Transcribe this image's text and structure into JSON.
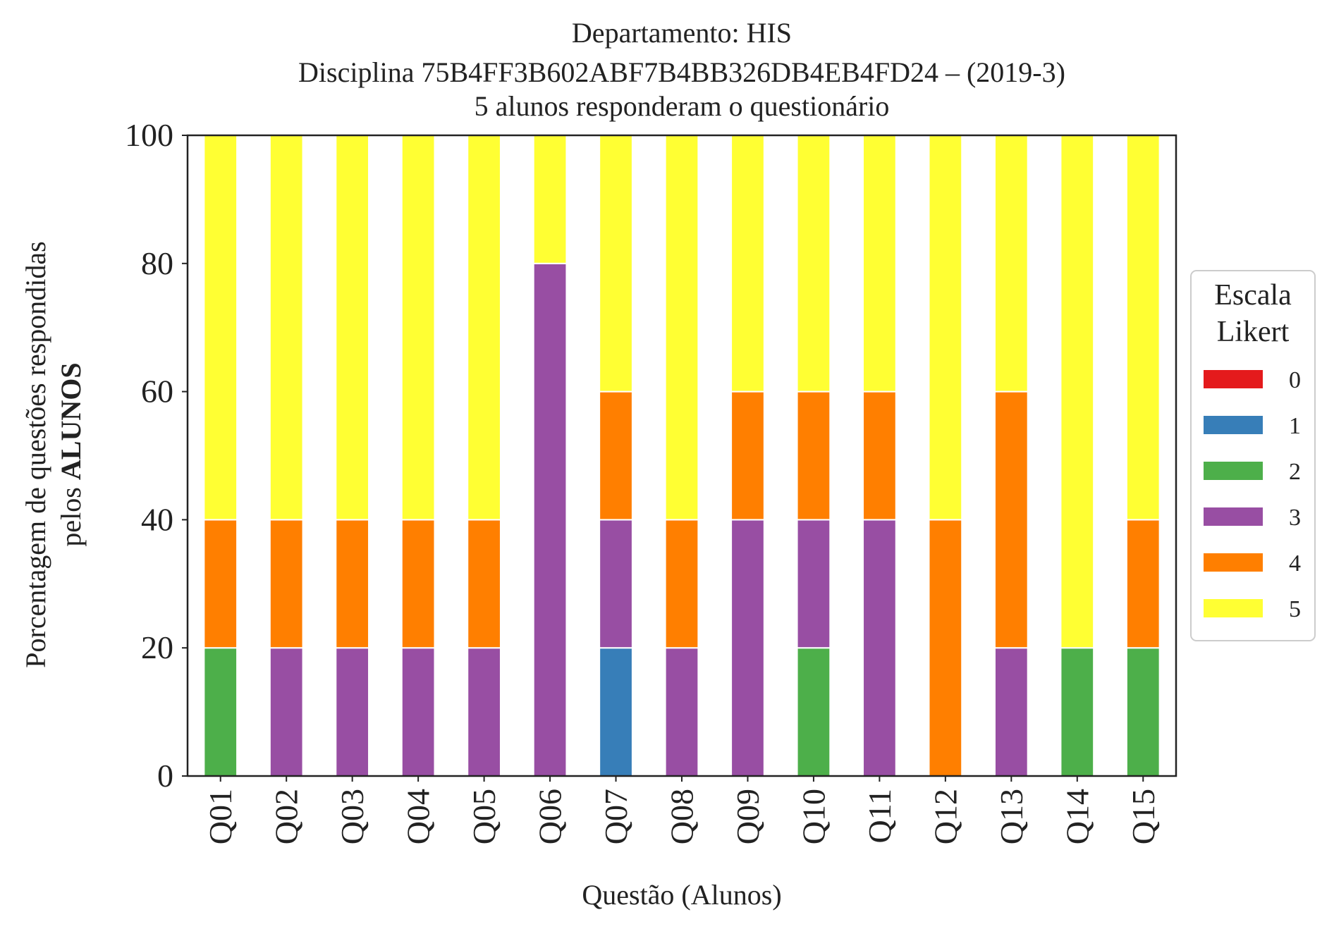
{
  "chart_data": {
    "type": "bar",
    "stacked": true,
    "title_lines": [
      "Departamento: HIS",
      "Disciplina 75B4FF3B602ABF7B4BB326DB4EB4FD24 – (2019-3)",
      "5 alunos responderam o questionário"
    ],
    "xlabel": "Questão (Alunos)",
    "ylabel_line1": "Porcentagem de questões respondidas",
    "ylabel_line2_prefix": "pelos ",
    "ylabel_line2_bold": "ALUNOS",
    "ylim": [
      0,
      100
    ],
    "yticks": [
      "0",
      "20",
      "40",
      "60",
      "80",
      "100"
    ],
    "grid": false,
    "legend_position": "right",
    "legend_title_lines": [
      "Escala",
      "Likert"
    ],
    "categories": [
      "Q01",
      "Q02",
      "Q03",
      "Q04",
      "Q05",
      "Q06",
      "Q07",
      "Q08",
      "Q09",
      "Q10",
      "Q11",
      "Q12",
      "Q13",
      "Q14",
      "Q15"
    ],
    "series": [
      {
        "name": "0",
        "color": "#e41a1c",
        "values": [
          0,
          0,
          0,
          0,
          0,
          0,
          0,
          0,
          0,
          0,
          0,
          0,
          0,
          0,
          0
        ]
      },
      {
        "name": "1",
        "color": "#377eb8",
        "values": [
          0,
          0,
          0,
          0,
          0,
          0,
          20,
          0,
          0,
          0,
          0,
          0,
          0,
          0,
          0
        ]
      },
      {
        "name": "2",
        "color": "#4daf4a",
        "values": [
          20,
          0,
          0,
          0,
          0,
          0,
          0,
          0,
          0,
          20,
          0,
          0,
          0,
          20,
          20
        ]
      },
      {
        "name": "3",
        "color": "#984ea3",
        "values": [
          0,
          20,
          20,
          20,
          20,
          80,
          20,
          20,
          40,
          20,
          40,
          0,
          20,
          0,
          0
        ]
      },
      {
        "name": "4",
        "color": "#ff7f00",
        "values": [
          20,
          20,
          20,
          20,
          20,
          0,
          20,
          20,
          20,
          20,
          20,
          40,
          40,
          0,
          20
        ]
      },
      {
        "name": "5",
        "color": "#ffff33",
        "values": [
          60,
          60,
          60,
          60,
          60,
          20,
          40,
          60,
          40,
          40,
          40,
          60,
          40,
          80,
          60
        ]
      }
    ]
  }
}
